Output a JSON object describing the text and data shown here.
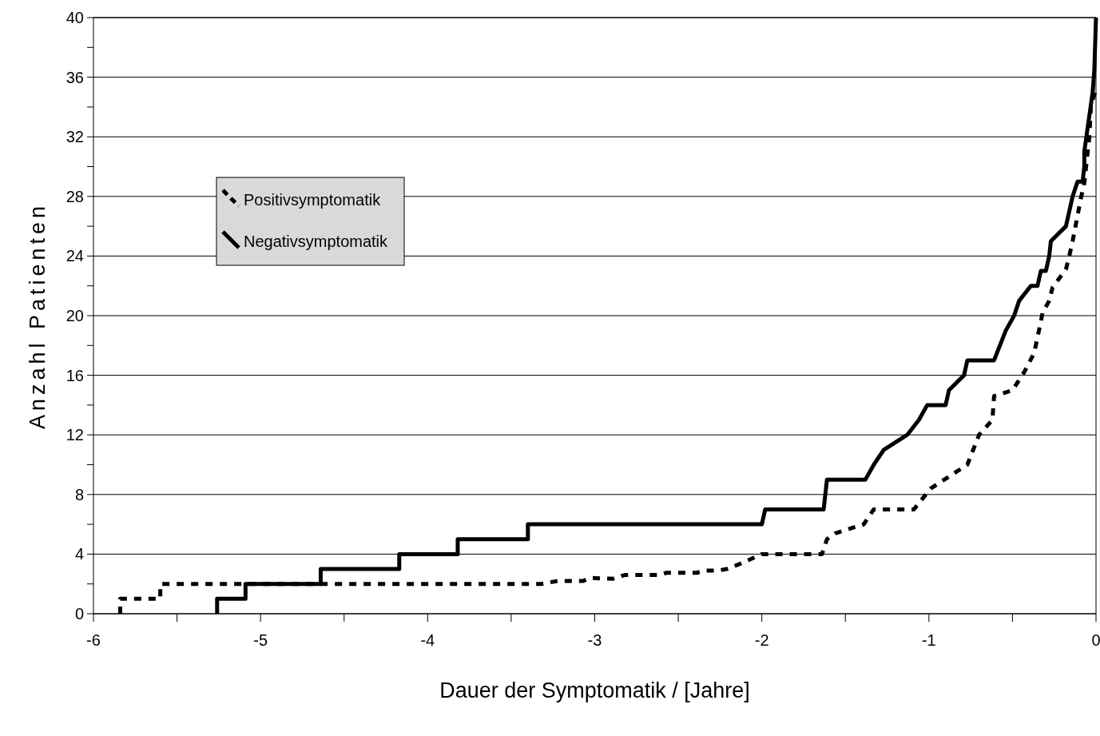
{
  "chart_data": {
    "type": "line",
    "xlabel": "Dauer der Symptomatik / [Jahre]",
    "ylabel": "Anzahl Patienten",
    "xlim": [
      -6,
      0
    ],
    "ylim": [
      0,
      40
    ],
    "xticks": [
      -6,
      {
        "value": -5.5,
        "label": null
      },
      -5,
      {
        "value": -4.5,
        "label": null
      },
      -4,
      {
        "value": -3.5,
        "label": null
      },
      -3,
      {
        "value": -2.5,
        "label": null
      },
      -2,
      {
        "value": -1.5,
        "label": null
      },
      -1,
      {
        "value": -0.5,
        "label": null
      },
      0
    ],
    "yticks": [
      0,
      {
        "value": 2,
        "label": null
      },
      4,
      {
        "value": 6,
        "label": null
      },
      8,
      {
        "value": 10,
        "label": null
      },
      12,
      {
        "value": 14,
        "label": null
      },
      16,
      {
        "value": 18,
        "label": null
      },
      20,
      {
        "value": 22,
        "label": null
      },
      24,
      {
        "value": 26,
        "label": null
      },
      28,
      {
        "value": 30,
        "label": null
      },
      32,
      {
        "value": 34,
        "label": null
      },
      36,
      {
        "value": 38,
        "label": null
      },
      40
    ],
    "grid": "y",
    "legend": "top left",
    "marker": "none",
    "series": [
      {
        "name": "Positivsymptomatik",
        "color": "#000000",
        "line_style": "dotted",
        "x": [
          -5.84,
          -5.84,
          -5.6,
          -5.6,
          -3.32,
          -3.22,
          -3.07,
          -3.03,
          -2.89,
          -2.82,
          -2.62,
          -2.57,
          -2.39,
          -2.34,
          -2.26,
          -2.21,
          -2.14,
          -2.0,
          -1.64,
          -1.61,
          -1.56,
          -1.39,
          -1.33,
          -1.09,
          -0.99,
          -0.77,
          -0.7,
          -0.62,
          -0.61,
          -0.5,
          -0.43,
          -0.37,
          -0.33,
          -0.32,
          -0.28,
          -0.26,
          -0.18,
          -0.16,
          -0.14,
          -0.09,
          -0.07,
          -0.04,
          -0.03,
          0
        ],
        "values": [
          0,
          1,
          1,
          2,
          2,
          2.2,
          2.2,
          2.4,
          2.35,
          2.6,
          2.6,
          2.75,
          2.75,
          2.9,
          2.9,
          3,
          3.3,
          4,
          4,
          5,
          5.4,
          6,
          7,
          7,
          8.4,
          10,
          12,
          13,
          14.6,
          15,
          16.2,
          17.5,
          19.6,
          20.2,
          21,
          21.9,
          23.1,
          24,
          25,
          27.9,
          28.9,
          32,
          34.1,
          35.2
        ]
      },
      {
        "name": "Negativsymptomatik",
        "color": "#000000",
        "line_style": "solid",
        "x": [
          -5.26,
          -5.26,
          -5.09,
          -5.09,
          -4.64,
          -4.64,
          -4.17,
          -4.17,
          -3.82,
          -3.82,
          -3.4,
          -3.4,
          -2.0,
          -1.98,
          -1.63,
          -1.61,
          -1.38,
          -1.33,
          -1.27,
          -1.13,
          -1.06,
          -1.01,
          -0.9,
          -0.88,
          -0.79,
          -0.77,
          -0.61,
          -0.54,
          -0.49,
          -0.46,
          -0.39,
          -0.35,
          -0.33,
          -0.3,
          -0.28,
          -0.27,
          -0.18,
          -0.14,
          -0.11,
          -0.08,
          -0.07,
          -0.07,
          -0.02,
          -0.01,
          0
        ],
        "values": [
          0,
          1,
          1,
          2,
          2,
          3,
          3,
          4,
          4,
          5,
          5,
          6,
          6,
          7,
          7,
          9,
          9,
          10,
          11,
          12,
          13,
          14,
          14,
          15,
          16,
          17,
          17,
          19,
          20,
          21,
          22,
          22,
          23,
          23,
          24,
          25,
          26,
          28,
          29,
          29,
          30,
          31,
          35,
          36.5,
          40
        ]
      }
    ]
  }
}
